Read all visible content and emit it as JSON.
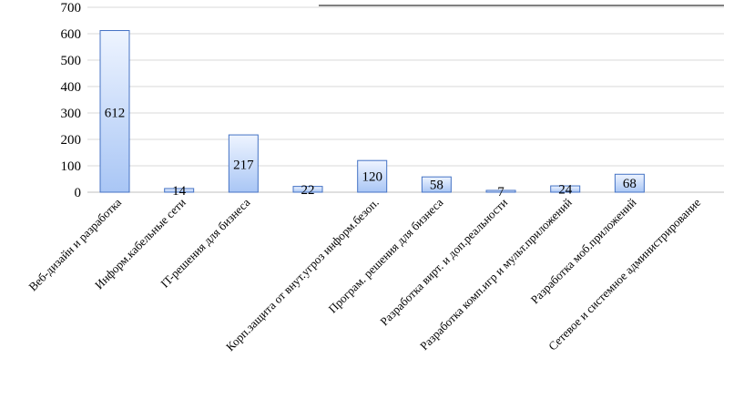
{
  "chart_data": {
    "type": "bar",
    "title": "",
    "xlabel": "",
    "ylabel": "",
    "ylim": [
      0,
      700
    ],
    "yticks": [
      0,
      100,
      200,
      300,
      400,
      500,
      600,
      700
    ],
    "grid": true,
    "legend": "none",
    "categories": [
      "Веб-дизайн и разработка",
      "Информ.кабельные сети",
      "IT-решения для бизнеса",
      "",
      "Корп.защита от внут.угроз информ.безоп.",
      "Програм. решения для бизнеса",
      "Разработка вирт. и доп.реальности",
      "Разработка комп.игр и мульт.приложений",
      "Разработка моб.приложений",
      "Сетевое и системное администрирование"
    ],
    "values": [
      612,
      14,
      217,
      22,
      120,
      58,
      7,
      24,
      68,
      null
    ],
    "data_labels": [
      "612",
      "14",
      "217",
      "22",
      "120",
      "58",
      "7",
      "24",
      "68",
      ""
    ],
    "colors": {
      "bar_fill_top": "#eef4ff",
      "bar_fill_bottom": "#a9c6f5",
      "bar_stroke": "#4472c4",
      "grid": "#d9d9d9",
      "axis": "#bfbfbf"
    }
  }
}
